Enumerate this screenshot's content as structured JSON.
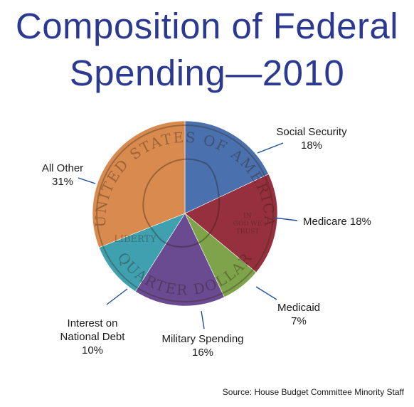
{
  "title": {
    "line1": "Composition of Federal",
    "line2": "Spending—2010"
  },
  "source": "Source: House Budget Committee Minority Staff",
  "chart_data": {
    "type": "pie",
    "title": "Composition of Federal Spending—2010",
    "slices": [
      {
        "name": "Social Security",
        "value": 18,
        "label_lines": [
          "Social Security",
          "18%"
        ],
        "color": "#4a70ad"
      },
      {
        "name": "Medicare",
        "value": 18,
        "label_lines": [
          "Medicare 18%"
        ],
        "color": "#96303e"
      },
      {
        "name": "Medicaid",
        "value": 7,
        "label_lines": [
          "Medicaid",
          "7%"
        ],
        "color": "#7ea34a"
      },
      {
        "name": "Military Spending",
        "value": 16,
        "label_lines": [
          "Military Spending",
          "16%"
        ],
        "color": "#6a4a91"
      },
      {
        "name": "Interest on National Debt",
        "value": 10,
        "label_lines": [
          "Interest on",
          "National Debt",
          "10%"
        ],
        "color": "#3fa1b0"
      },
      {
        "name": "All Other",
        "value": 31,
        "label_lines": [
          "All Other",
          "31%"
        ],
        "color": "#d98b4f"
      }
    ],
    "start_angle_deg": 0,
    "direction": "clockwise",
    "coin_text": [
      "UNITED STATES OF AMERICA",
      "IN GOD WE TRUST",
      "LIBERTY",
      "QUARTER DOLLAR"
    ]
  }
}
